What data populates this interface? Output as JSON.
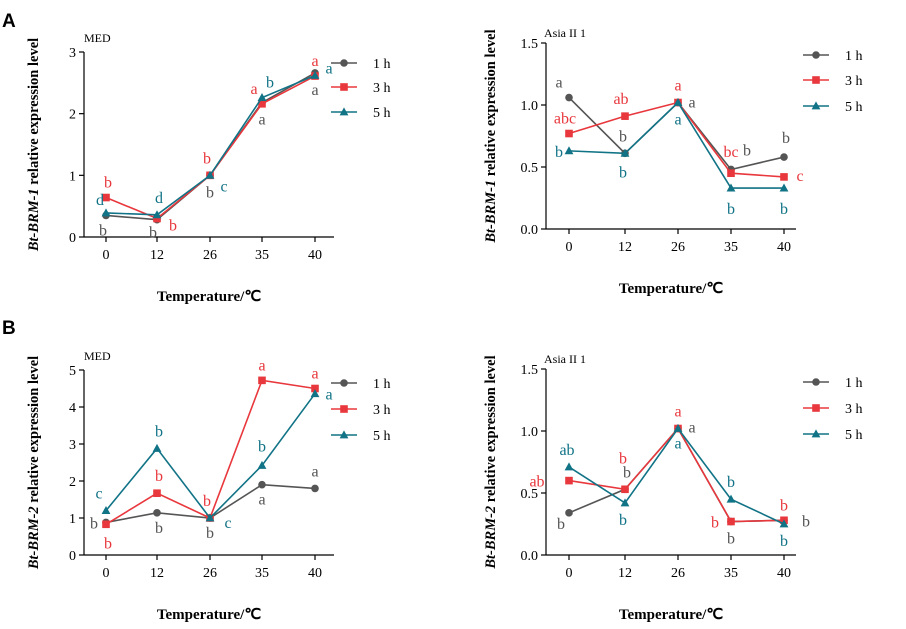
{
  "panels": [
    {
      "letter": "A"
    },
    {
      "letter": "B"
    }
  ],
  "colors": {
    "1 h": "#555555",
    "3 h": "#e8383d",
    "5 h": "#117386"
  },
  "chart_data": [
    {
      "type": "line",
      "title": "MED",
      "panel": "A",
      "gene": "Bt-BRM-1",
      "ylabel_suffix": " relative expression level",
      "xlabel": "Temperature/℃",
      "categories": [
        "0",
        "12",
        "26",
        "35",
        "40"
      ],
      "ylim": [
        0,
        3
      ],
      "yticks": [
        0,
        1,
        2,
        3
      ],
      "legend": "right",
      "series": [
        {
          "name": "1 h",
          "marker": "circle",
          "values": [
            0.35,
            0.28,
            1.0,
            2.18,
            2.66
          ],
          "letters": [
            "b",
            "b",
            "b",
            "a",
            "a"
          ]
        },
        {
          "name": "3 h",
          "marker": "square",
          "values": [
            0.64,
            0.3,
            1.0,
            2.16,
            2.61
          ],
          "letters": [
            "b",
            "b",
            "b",
            "a",
            "a"
          ]
        },
        {
          "name": "5 h",
          "marker": "triangle",
          "values": [
            0.39,
            0.36,
            1.0,
            2.26,
            2.62
          ],
          "letters": [
            "d",
            "d",
            "c",
            "b",
            "a"
          ]
        }
      ]
    },
    {
      "type": "line",
      "title": "Asia II 1",
      "panel": "A",
      "gene": "Bt-BRM-1",
      "ylabel_suffix": " relative expression level",
      "xlabel": "Temperature/℃",
      "categories": [
        "0",
        "12",
        "26",
        "35",
        "40"
      ],
      "ylim": [
        0,
        1.5
      ],
      "yticks": [
        "0.0",
        "0.5",
        "1.0",
        "1.5"
      ],
      "legend": "right",
      "series": [
        {
          "name": "1 h",
          "marker": "circle",
          "values": [
            1.06,
            0.61,
            1.02,
            0.48,
            0.58
          ],
          "letters": [
            "a",
            "b",
            "a",
            "b",
            "b"
          ]
        },
        {
          "name": "3 h",
          "marker": "square",
          "values": [
            0.77,
            0.91,
            1.02,
            0.45,
            0.42
          ],
          "letters": [
            "abc",
            "ab",
            "a",
            "bc",
            "c"
          ]
        },
        {
          "name": "5 h",
          "marker": "triangle",
          "values": [
            0.63,
            0.61,
            1.02,
            0.33,
            0.33
          ],
          "letters": [
            "b",
            "b",
            "a",
            "b",
            "b"
          ]
        }
      ]
    },
    {
      "type": "line",
      "title": "MED",
      "panel": "B",
      "gene": "Bt-BRM-2",
      "ylabel_suffix": " relative expression level",
      "xlabel": "Temperature/℃",
      "categories": [
        "0",
        "12",
        "26",
        "35",
        "40"
      ],
      "ylim": [
        0,
        5
      ],
      "yticks": [
        0,
        1,
        2,
        3,
        4,
        5
      ],
      "legend": "right",
      "series": [
        {
          "name": "1 h",
          "marker": "circle",
          "values": [
            0.88,
            1.14,
            1.0,
            1.9,
            1.8
          ],
          "letters": [
            "b",
            "b",
            "b",
            "a",
            "a"
          ]
        },
        {
          "name": "3 h",
          "marker": "square",
          "values": [
            0.83,
            1.67,
            1.0,
            4.72,
            4.5
          ],
          "letters": [
            "b",
            "b",
            "b",
            "a",
            "a"
          ]
        },
        {
          "name": "5 h",
          "marker": "triangle",
          "values": [
            1.2,
            2.88,
            1.0,
            2.42,
            4.36
          ],
          "letters": [
            "c",
            "b",
            "c",
            "b",
            "a"
          ]
        }
      ]
    },
    {
      "type": "line",
      "title": "Asia II 1",
      "panel": "B",
      "gene": "Bt-BRM-2",
      "ylabel_suffix": " relative expression level",
      "xlabel": "Temperature/℃",
      "categories": [
        "0",
        "12",
        "26",
        "35",
        "40"
      ],
      "ylim": [
        0,
        1.5
      ],
      "yticks": [
        "0.0",
        "0.5",
        "1.0",
        "1.5"
      ],
      "legend": "right",
      "series": [
        {
          "name": "1 h",
          "marker": "circle",
          "values": [
            0.34,
            0.53,
            1.02,
            0.27,
            0.28
          ],
          "letters": [
            "b",
            "b",
            "a",
            "b",
            "b"
          ]
        },
        {
          "name": "3 h",
          "marker": "square",
          "values": [
            0.6,
            0.53,
            1.02,
            0.27,
            0.28
          ],
          "letters": [
            "ab",
            "b",
            "a",
            "b",
            "b"
          ]
        },
        {
          "name": "5 h",
          "marker": "triangle",
          "values": [
            0.71,
            0.42,
            1.02,
            0.45,
            0.25
          ],
          "letters": [
            "ab",
            "b",
            "a",
            "b",
            "b"
          ]
        }
      ]
    }
  ]
}
